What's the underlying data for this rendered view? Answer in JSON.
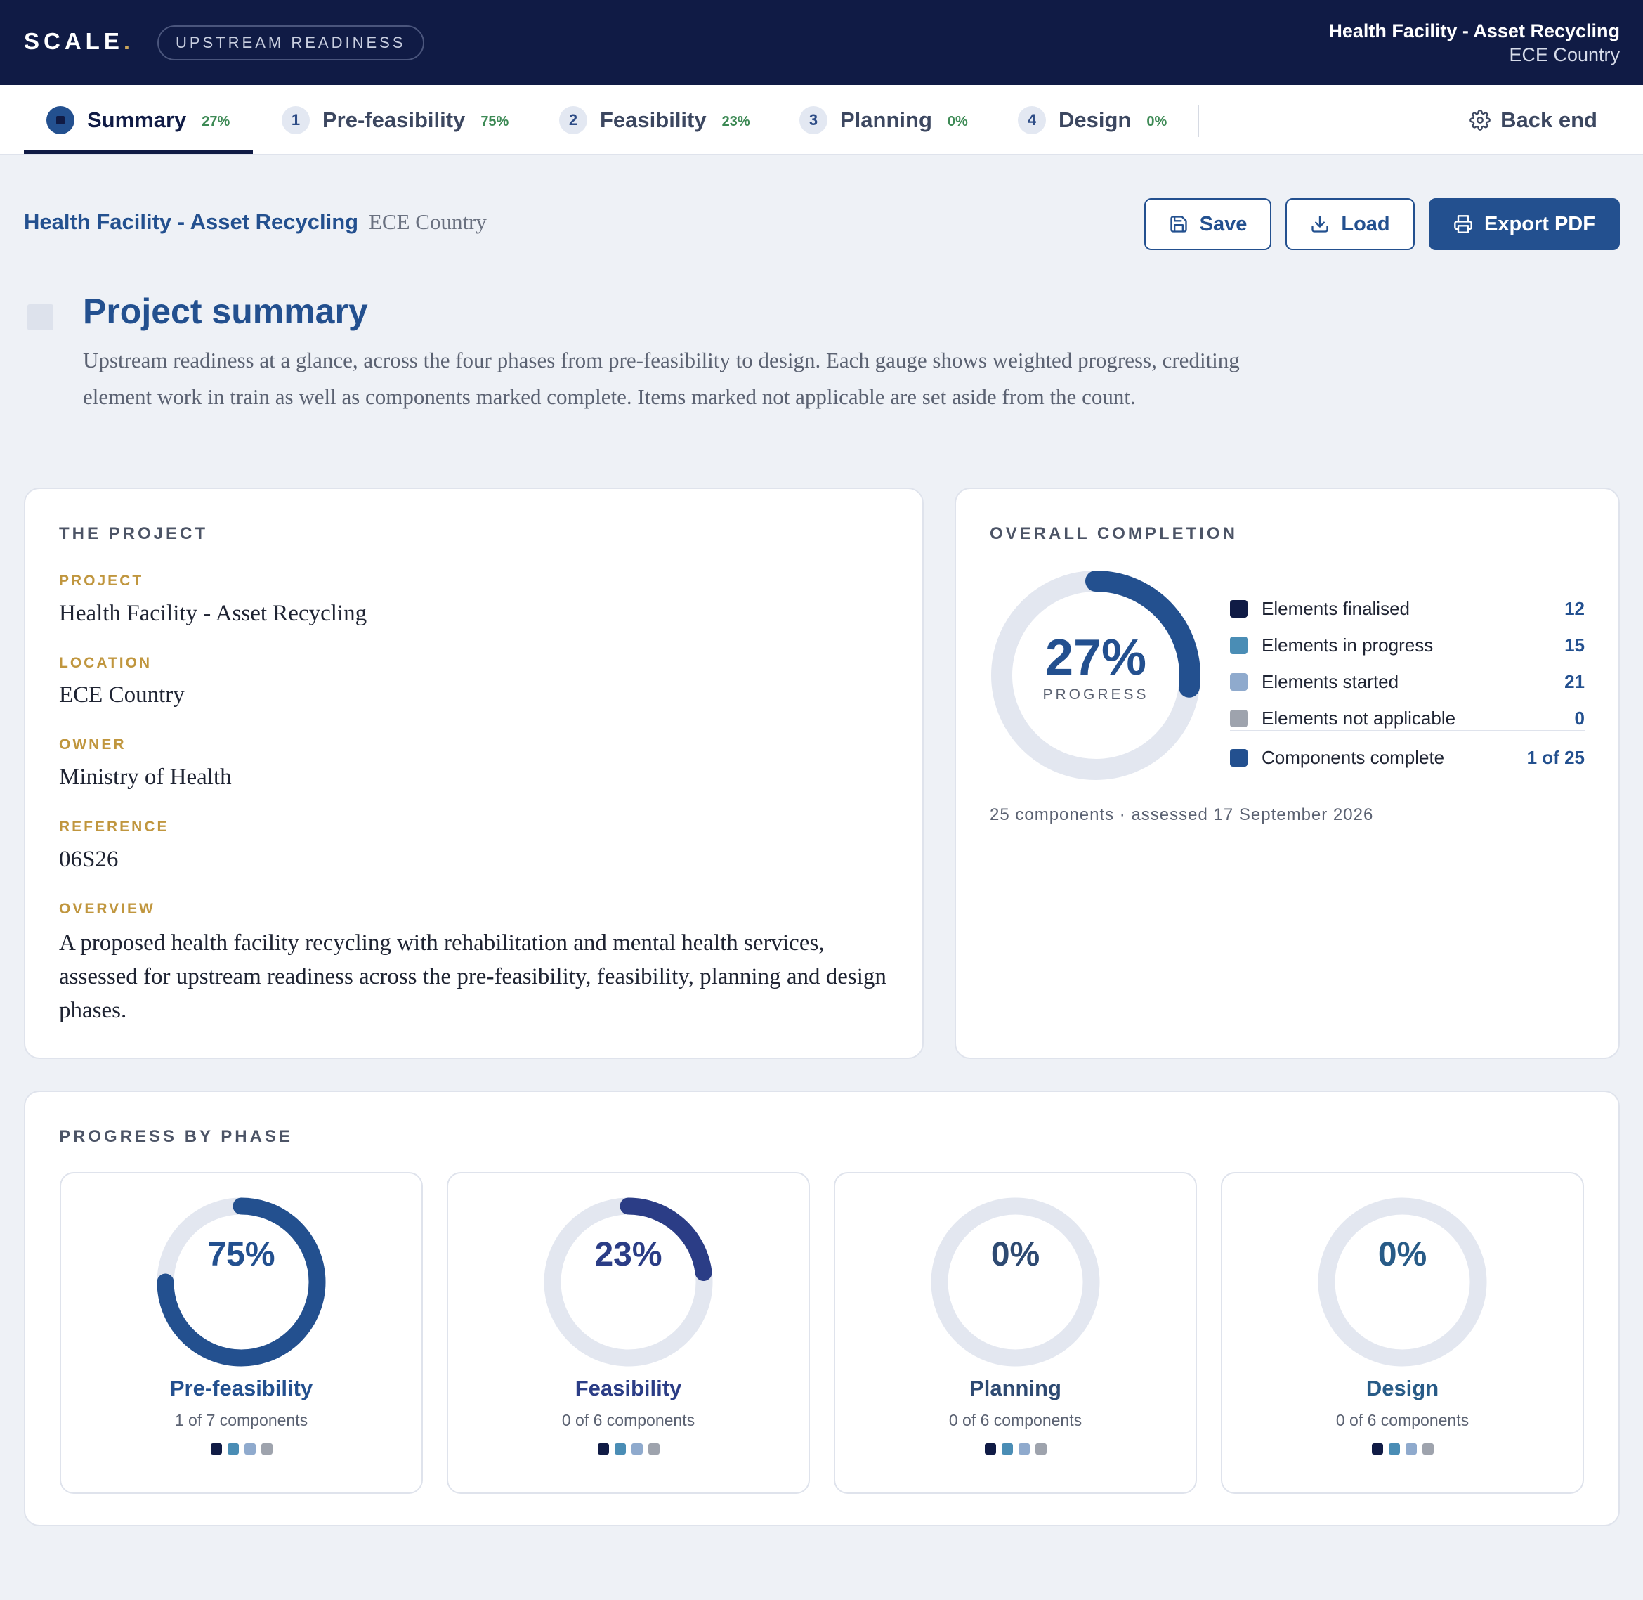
{
  "app": {
    "logo": "SCALE",
    "logo_dot": ".",
    "badge": "UPSTREAM READINESS",
    "project_title": "Health Facility - Asset Recycling",
    "project_country": "ECE Country"
  },
  "tabs": [
    {
      "num": "",
      "label": "Summary",
      "pct": "27%"
    },
    {
      "num": "1",
      "label": "Pre-feasibility",
      "pct": "75%"
    },
    {
      "num": "2",
      "label": "Feasibility",
      "pct": "23%"
    },
    {
      "num": "3",
      "label": "Planning",
      "pct": "0%"
    },
    {
      "num": "4",
      "label": "Design",
      "pct": "0%"
    }
  ],
  "backend_label": "Back end",
  "header": {
    "project_link": "Health Facility - Asset Recycling",
    "country": "ECE Country",
    "save": "Save",
    "load": "Load",
    "export": "Export PDF"
  },
  "intro": {
    "title": "Project summary",
    "text": "Upstream readiness at a glance, across the four phases from pre-feasibility to design. Each gauge shows weighted progress, crediting element work in train as well as components marked complete. Items marked not applicable are set aside from the count."
  },
  "project_card": {
    "title": "THE PROJECT",
    "fields": [
      {
        "label": "PROJECT",
        "value": "Health Facility - Asset Recycling"
      },
      {
        "label": "LOCATION",
        "value": "ECE Country"
      },
      {
        "label": "OWNER",
        "value": "Ministry of Health"
      },
      {
        "label": "REFERENCE",
        "value": "06S26"
      },
      {
        "label": "OVERVIEW",
        "value": "A proposed health facility recycling with rehabilitation and mental health services, assessed for upstream readiness across the pre-feasibility, feasibility, planning and design phases."
      }
    ]
  },
  "overall": {
    "title": "OVERALL COMPLETION",
    "percent_text": "27%",
    "progress_fraction": 0.27,
    "progress_label": "PROGRESS",
    "legend": [
      {
        "label": "Elements finalised",
        "value": "12",
        "color": "#101b45"
      },
      {
        "label": "Elements in progress",
        "value": "15",
        "color": "#4a8db5"
      },
      {
        "label": "Elements started",
        "value": "21",
        "color": "#8faacd"
      },
      {
        "label": "Elements not applicable",
        "value": "0",
        "color": "#9ea3ad"
      }
    ],
    "complete": {
      "label": "Components complete",
      "value": "1 of 25",
      "color": "#23508f"
    },
    "footer": "25 components · assessed 17 September 2026"
  },
  "phases_card": {
    "title": "PROGRESS BY PHASE",
    "phases": [
      {
        "name": "Pre-feasibility",
        "percent_text": "75%",
        "fraction": 0.75,
        "count": "1 of 7 components",
        "color": "#23508f"
      },
      {
        "name": "Feasibility",
        "percent_text": "23%",
        "fraction": 0.23,
        "count": "0 of 6 components",
        "color": "#2b3d86"
      },
      {
        "name": "Planning",
        "percent_text": "0%",
        "fraction": 0,
        "count": "0 of 6 components",
        "color": "#2e4a72"
      },
      {
        "name": "Design",
        "percent_text": "0%",
        "fraction": 0,
        "count": "0 of 6 components",
        "color": "#285b87"
      }
    ],
    "dot_colors": [
      "#101b45",
      "#4a8db5",
      "#8faacd",
      "#9ea3ad"
    ]
  },
  "colors": {
    "navy": "#101b45",
    "accent": "#23508f",
    "gold": "#c0963e",
    "track": "#e3e7f0",
    "green_pct": "#3d8a55"
  }
}
